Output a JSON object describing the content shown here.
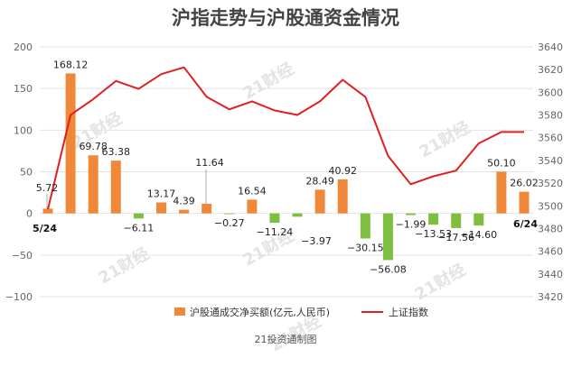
{
  "chart_data": {
    "type": "bar",
    "title": "沪指走势与沪股通资金情况",
    "footer": "21投资通制图",
    "watermark": "21财经",
    "grid": true,
    "legend_position": "bottom",
    "start_label": "5/24",
    "end_label": "6/24",
    "left_axis": {
      "min": -100,
      "max": 200,
      "ticks": [
        "−100",
        "−50",
        "0",
        "50",
        "100",
        "150",
        "200"
      ]
    },
    "right_axis": {
      "min": 3420,
      "max": 3640,
      "ticks": [
        "3420",
        "3440",
        "3460",
        "3480",
        "3500",
        "3520",
        "3540",
        "3560",
        "3580",
        "3600",
        "3620",
        "3640"
      ]
    },
    "series": [
      {
        "name": "沪股通成交净买额(亿元,人民币)",
        "type": "bar",
        "color": "#f0883a",
        "negative_color": "#7fbf3f",
        "values": [
          5.72,
          168.12,
          69.78,
          63.38,
          -6.11,
          13.17,
          4.39,
          11.64,
          -0.27,
          16.54,
          -11.24,
          -3.97,
          28.49,
          40.92,
          -30.15,
          -56.08,
          -1.99,
          -13.53,
          -17.56,
          -14.6,
          50.1,
          26.02
        ],
        "labels": [
          "5.72",
          "168.12",
          "69.78",
          "63.38",
          "−6.11",
          "13.17",
          "4.39",
          "11.64",
          "−0.27",
          "16.54",
          "−11.24",
          "−3.97",
          "28.49",
          "40.92",
          "−30.15",
          "−56.08",
          "−1.99",
          "−13.53",
          "−17.56",
          "−14.60",
          "50.10",
          "26.02"
        ]
      },
      {
        "name": "上证指数",
        "type": "line",
        "color": "#e02020",
        "values": [
          3497,
          3580,
          3594,
          3610,
          3603,
          3616,
          3622,
          3596,
          3585,
          3592,
          3584,
          3580,
          3592,
          3611,
          3596,
          3544,
          3519,
          3526,
          3531,
          3555,
          3565,
          3565
        ]
      }
    ]
  }
}
